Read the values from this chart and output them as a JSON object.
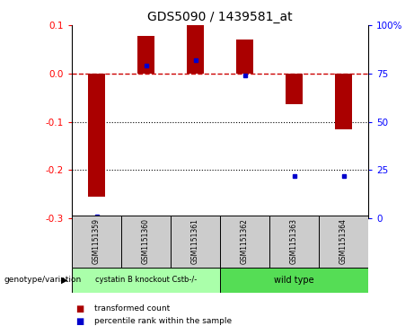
{
  "title": "GDS5090 / 1439581_at",
  "samples": [
    "GSM1151359",
    "GSM1151360",
    "GSM1151361",
    "GSM1151362",
    "GSM1151363",
    "GSM1151364"
  ],
  "bar_values": [
    -0.255,
    0.078,
    0.1,
    0.07,
    -0.063,
    -0.115
  ],
  "percentile_values": [
    1,
    79,
    82,
    74,
    22,
    22
  ],
  "ylim_left": [
    -0.3,
    0.1
  ],
  "ylim_right": [
    0,
    100
  ],
  "yticks_left": [
    -0.3,
    -0.2,
    -0.1,
    0.0,
    0.1
  ],
  "yticks_right": [
    0,
    25,
    50,
    75,
    100
  ],
  "ytick_labels_right": [
    "0",
    "25",
    "50",
    "75",
    "100%"
  ],
  "bar_color": "#aa0000",
  "dot_color": "#0000cc",
  "dashed_line_color": "#cc0000",
  "group1_label": "cystatin B knockout Cstb-/-",
  "group2_label": "wild type",
  "group1_color": "#aaffaa",
  "group2_color": "#55dd55",
  "group1_indices": [
    0,
    1,
    2
  ],
  "group2_indices": [
    3,
    4,
    5
  ],
  "genotype_label": "genotype/variation",
  "legend_bar_label": "transformed count",
  "legend_dot_label": "percentile rank within the sample",
  "dotted_line_values": [
    -0.1,
    -0.2
  ],
  "background_color": "#ffffff",
  "cell_bg_color": "#cccccc"
}
